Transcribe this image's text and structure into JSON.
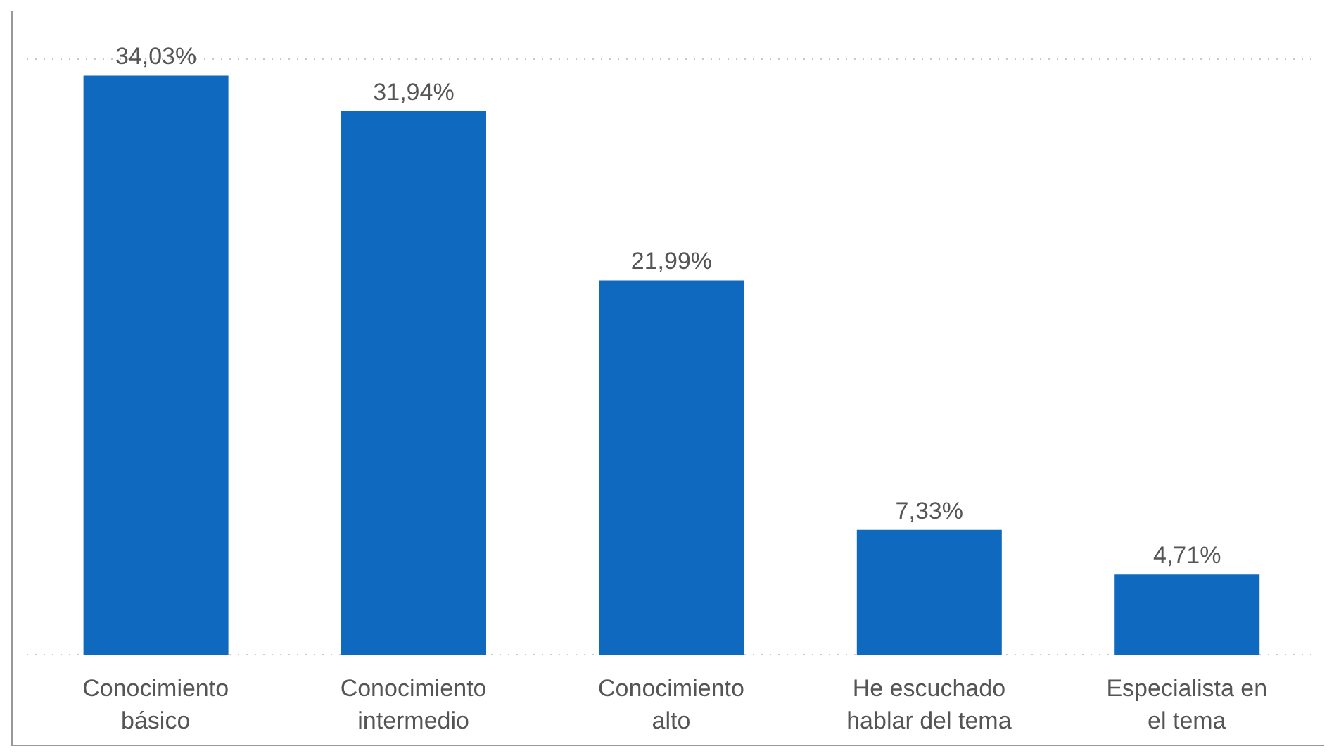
{
  "chart_data": {
    "type": "bar",
    "categories": [
      "Conocimiento básico",
      "Conocimiento intermedio",
      "Conocimiento alto",
      "He escuchado hablar del tema",
      "Especialista en el tema"
    ],
    "values": [
      34.03,
      31.94,
      21.99,
      7.33,
      4.71
    ],
    "value_labels": [
      "34,03%",
      "31,94%",
      "21,99%",
      "7,33%",
      "4,71%"
    ],
    "color": "#0f6abf",
    "ylim": [
      0,
      35
    ],
    "grid": "y",
    "tick_labels": "x"
  }
}
